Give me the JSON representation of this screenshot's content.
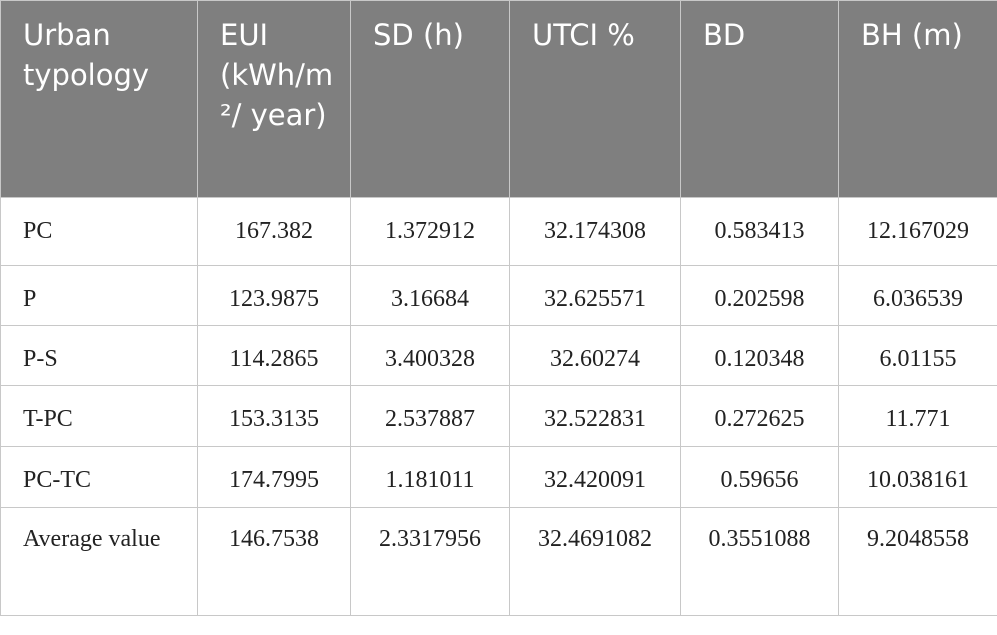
{
  "table": {
    "header": [
      "Urban typology",
      "EUI (kWh/m²/ year)",
      "SD (h)",
      "UTCI %",
      "BD",
      "BH (m)"
    ],
    "rows": [
      [
        "PC",
        "167.382",
        "1.372912",
        "32.174308",
        "0.583413",
        "12.167029"
      ],
      [
        "P",
        "123.9875",
        "3.16684",
        "32.625571",
        "0.202598",
        "6.036539"
      ],
      [
        "P-S",
        "114.2865",
        "3.400328",
        "32.60274",
        "0.120348",
        "6.01155"
      ],
      [
        "T-PC",
        "153.3135",
        "2.537887",
        "32.522831",
        "0.272625",
        "11.771"
      ],
      [
        "PC-TC",
        "174.7995",
        "1.181011",
        "32.420091",
        "0.59656",
        "10.038161"
      ],
      [
        "Average value",
        "146.7538",
        "2.3317956",
        "32.4691082",
        "0.3551088",
        "9.2048558"
      ]
    ]
  }
}
